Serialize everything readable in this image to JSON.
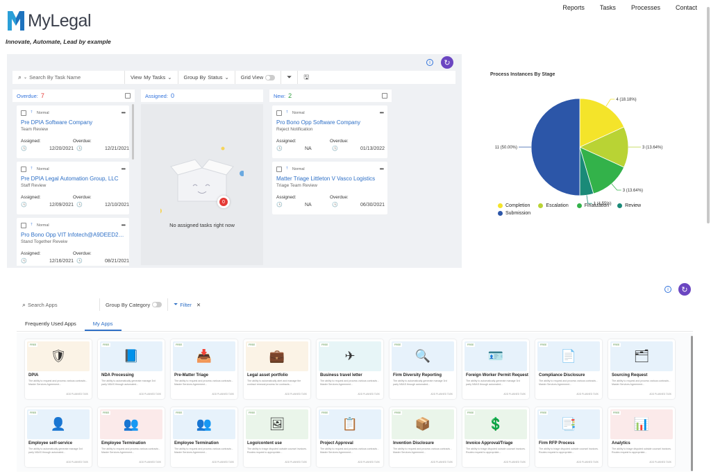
{
  "nav": [
    "Reports",
    "Tasks",
    "Processes",
    "Contact"
  ],
  "brand": {
    "name": "MyLegal",
    "tagline": "Innovate, Automate, Lead by example"
  },
  "task_toolbar": {
    "search_placeholder": "Search By Task Name",
    "view_label": "View",
    "view_value": "My Tasks",
    "group_label": "Group By",
    "group_value": "Status",
    "grid_view": "Grid View"
  },
  "columns": [
    {
      "name": "Overdue:",
      "count": "7",
      "count_color": "#e53935"
    },
    {
      "name": "Assigned:",
      "count": "0",
      "count_color": "#3273dc"
    },
    {
      "name": "New:",
      "count": "2",
      "count_color": "#2e9e3e"
    }
  ],
  "overdue_cards": [
    {
      "priority": "Normal",
      "title": "Pre DPIA Software Company",
      "subtitle": "Team Review",
      "lbl_a": "Assigned:",
      "lbl_b": "Overdue:",
      "val_a": "12/20/2021",
      "val_b": "12/21/2021"
    },
    {
      "priority": "Normal",
      "title": "Pre DPIA Legal Automation Group, LLC",
      "subtitle": "Staff Review",
      "lbl_a": "Assigned:",
      "lbl_b": "Overdue:",
      "val_a": "12/09/2021",
      "val_b": "12/10/2021"
    },
    {
      "priority": "Normal",
      "title": "Pro Bono Opp VIT Infotech@A9DEED29...",
      "subtitle": "Stand Together Reveiw",
      "lbl_a": "Assigned:",
      "lbl_b": "Overdue:",
      "val_a": "12/16/2021",
      "val_b": "08/21/2021"
    }
  ],
  "new_cards": [
    {
      "priority": "Normal",
      "title": "Pro Bono Opp Software Company",
      "subtitle": "Reject Notification",
      "lbl_a": "Assigned:",
      "lbl_b": "Overdue:",
      "val_a": "NA",
      "val_b": "01/13/2022"
    },
    {
      "priority": "Normal",
      "title": "Matter Triage Littleton V Vasco Logistics",
      "subtitle": "Triage Team Review",
      "lbl_a": "Assigned:",
      "lbl_b": "Overdue:",
      "val_a": "NA",
      "val_b": "06/30/2021"
    }
  ],
  "empty_state": {
    "text": "No assigned tasks right now",
    "badge": "0"
  },
  "chart_data": {
    "type": "pie",
    "title": "Process Instances By Stage",
    "slices": [
      {
        "name": "Completion",
        "value": 4,
        "label": "4  (18.18%)",
        "color": "#f4e42a"
      },
      {
        "name": "Escalation",
        "value": 3,
        "label": "3  (13.64%)",
        "color": "#b9d334"
      },
      {
        "name": "Finalization",
        "value": 3,
        "label": "3  (13.64%)",
        "color": "#33b24a"
      },
      {
        "name": "Review",
        "value": 1,
        "label": "1  (4.55%)",
        "color": "#1a8a78"
      },
      {
        "name": "Submission",
        "value": 11,
        "label": "11  (50.00%)",
        "color": "#2c56a8"
      }
    ],
    "legend": "bottom"
  },
  "apps_toolbar": {
    "search_placeholder": "Search Apps",
    "group_label": "Group By Category",
    "filter_label": "Filter"
  },
  "app_tabs": [
    {
      "label": "Frequently Used Apps",
      "active": false
    },
    {
      "label": "My Apps",
      "active": true
    }
  ],
  "apps": [
    {
      "name": "DPIA",
      "free": "FREE",
      "icon": "🛡",
      "bg": "#fbf3e6",
      "desc": "The ability to request and process various contracts - Master Services Agreement...",
      "add": "ADD PLANNED TASK"
    },
    {
      "name": "NDA Processing",
      "free": "FREE",
      "icon": "📘",
      "bg": "#e7f2fb",
      "desc": "The ability to automatically generate manage 3rd party NDAS through automated...",
      "add": "ADD PLANNED TASK"
    },
    {
      "name": "Pre-Matter Triage",
      "free": "FREE",
      "icon": "📥",
      "bg": "#e7f2fb",
      "desc": "The ability to request and process various contracts - Master Services Agreement...",
      "add": "ADD PLANNED TASK"
    },
    {
      "name": "Legal asset portfolio",
      "free": "FREE",
      "icon": "💼",
      "bg": "#fbf3e6",
      "desc": "The ability to automatically alert and manage the contract renewal process for contracts...",
      "add": "ADD PLANNED TASK"
    },
    {
      "name": "Business travel letter",
      "free": "FREE",
      "icon": "✈",
      "bg": "#e7f5f7",
      "desc": "The ability to request and process various contracts - Master Services Agreement...",
      "add": "ADD PLANNED TASK"
    },
    {
      "name": "Firm Diversity Reporting",
      "free": "FREE",
      "icon": "🔍",
      "bg": "#e7f2fb",
      "desc": "The ability to automatically generate manage 3rd party NDAS through automated...",
      "add": "ADD PLANNED TASK"
    },
    {
      "name": "Foreign Worker Permit Request",
      "free": "FREE",
      "icon": "🪪",
      "bg": "#e7f2fb",
      "desc": "The ability to automatically generate manage 3rd party NDAS through automated...",
      "add": "ADD PLANNED TASK"
    },
    {
      "name": "Compliance Disclosure",
      "free": "FREE",
      "icon": "📄",
      "bg": "#e7f2fb",
      "desc": "The ability to request and process various contracts - Master Services Agreement...",
      "add": "ADD PLANNED TASK"
    },
    {
      "name": "Sourcing Request",
      "free": "FREE",
      "icon": "🗂",
      "bg": "#e7f2fb",
      "desc": "The ability to request and process various contracts - Master Services Agreement...",
      "add": "ADD PLANNED TASK"
    },
    {
      "name": "Employee self-service",
      "free": "FREE",
      "icon": "👤",
      "bg": "#e7f2fb",
      "desc": "The ability to automatically generate manage 3rd party NDAS through automated...",
      "add": "ADD PLANNED TASK"
    },
    {
      "name": "Employee Termination",
      "free": "FREE",
      "icon": "👥",
      "bg": "#fbeaea",
      "desc": "The ability to request and process various contracts - Master Services Agreement...",
      "add": "ADD PLANNED TASK"
    },
    {
      "name": "Employee Termination",
      "free": "FREE",
      "icon": "👥",
      "bg": "#e7f2fb",
      "desc": "The ability to request and process various contracts - Master Services Agreement...",
      "add": "ADD PLANNED TASK"
    },
    {
      "name": "Logo/content use",
      "free": "FREE",
      "icon": "🖼",
      "bg": "#eaf5ea",
      "desc": "The ability to triage disputed outside counsel invoices. Routes request to appropriate...",
      "add": "ADD PLANNED TASK"
    },
    {
      "name": "Project Approval",
      "free": "FREE",
      "icon": "📋",
      "bg": "#e7f2fb",
      "desc": "The ability to request and process various contracts - Master Services Agreement...",
      "add": "ADD PLANNED TASK"
    },
    {
      "name": "Invention Disclosure",
      "free": "FREE",
      "icon": "📦",
      "bg": "#eaf5ea",
      "desc": "The ability to request and process various contracts - Master Services Agreement...",
      "add": "ADD PLANNED TASK"
    },
    {
      "name": "Invoice Approval/Triage",
      "free": "FREE",
      "icon": "💲",
      "bg": "#eaf5ea",
      "desc": "The ability to triage disputed outside counsel invoices. Routes request to appropriate...",
      "add": "ADD PLANNED TASK"
    },
    {
      "name": "Firm RFP Process",
      "free": "FREE",
      "icon": "📑",
      "bg": "#e7f2fb",
      "desc": "The ability to triage disputed outside counsel invoices. Routes request to appropriate...",
      "add": "ADD PLANNED TASK"
    },
    {
      "name": "Analytics",
      "free": "FREE",
      "icon": "📊",
      "bg": "#fbeaea",
      "desc": "The ability to triage disputed outside counsel invoices. Routes request to appropriate...",
      "add": "ADD PLANNED TASK"
    }
  ]
}
